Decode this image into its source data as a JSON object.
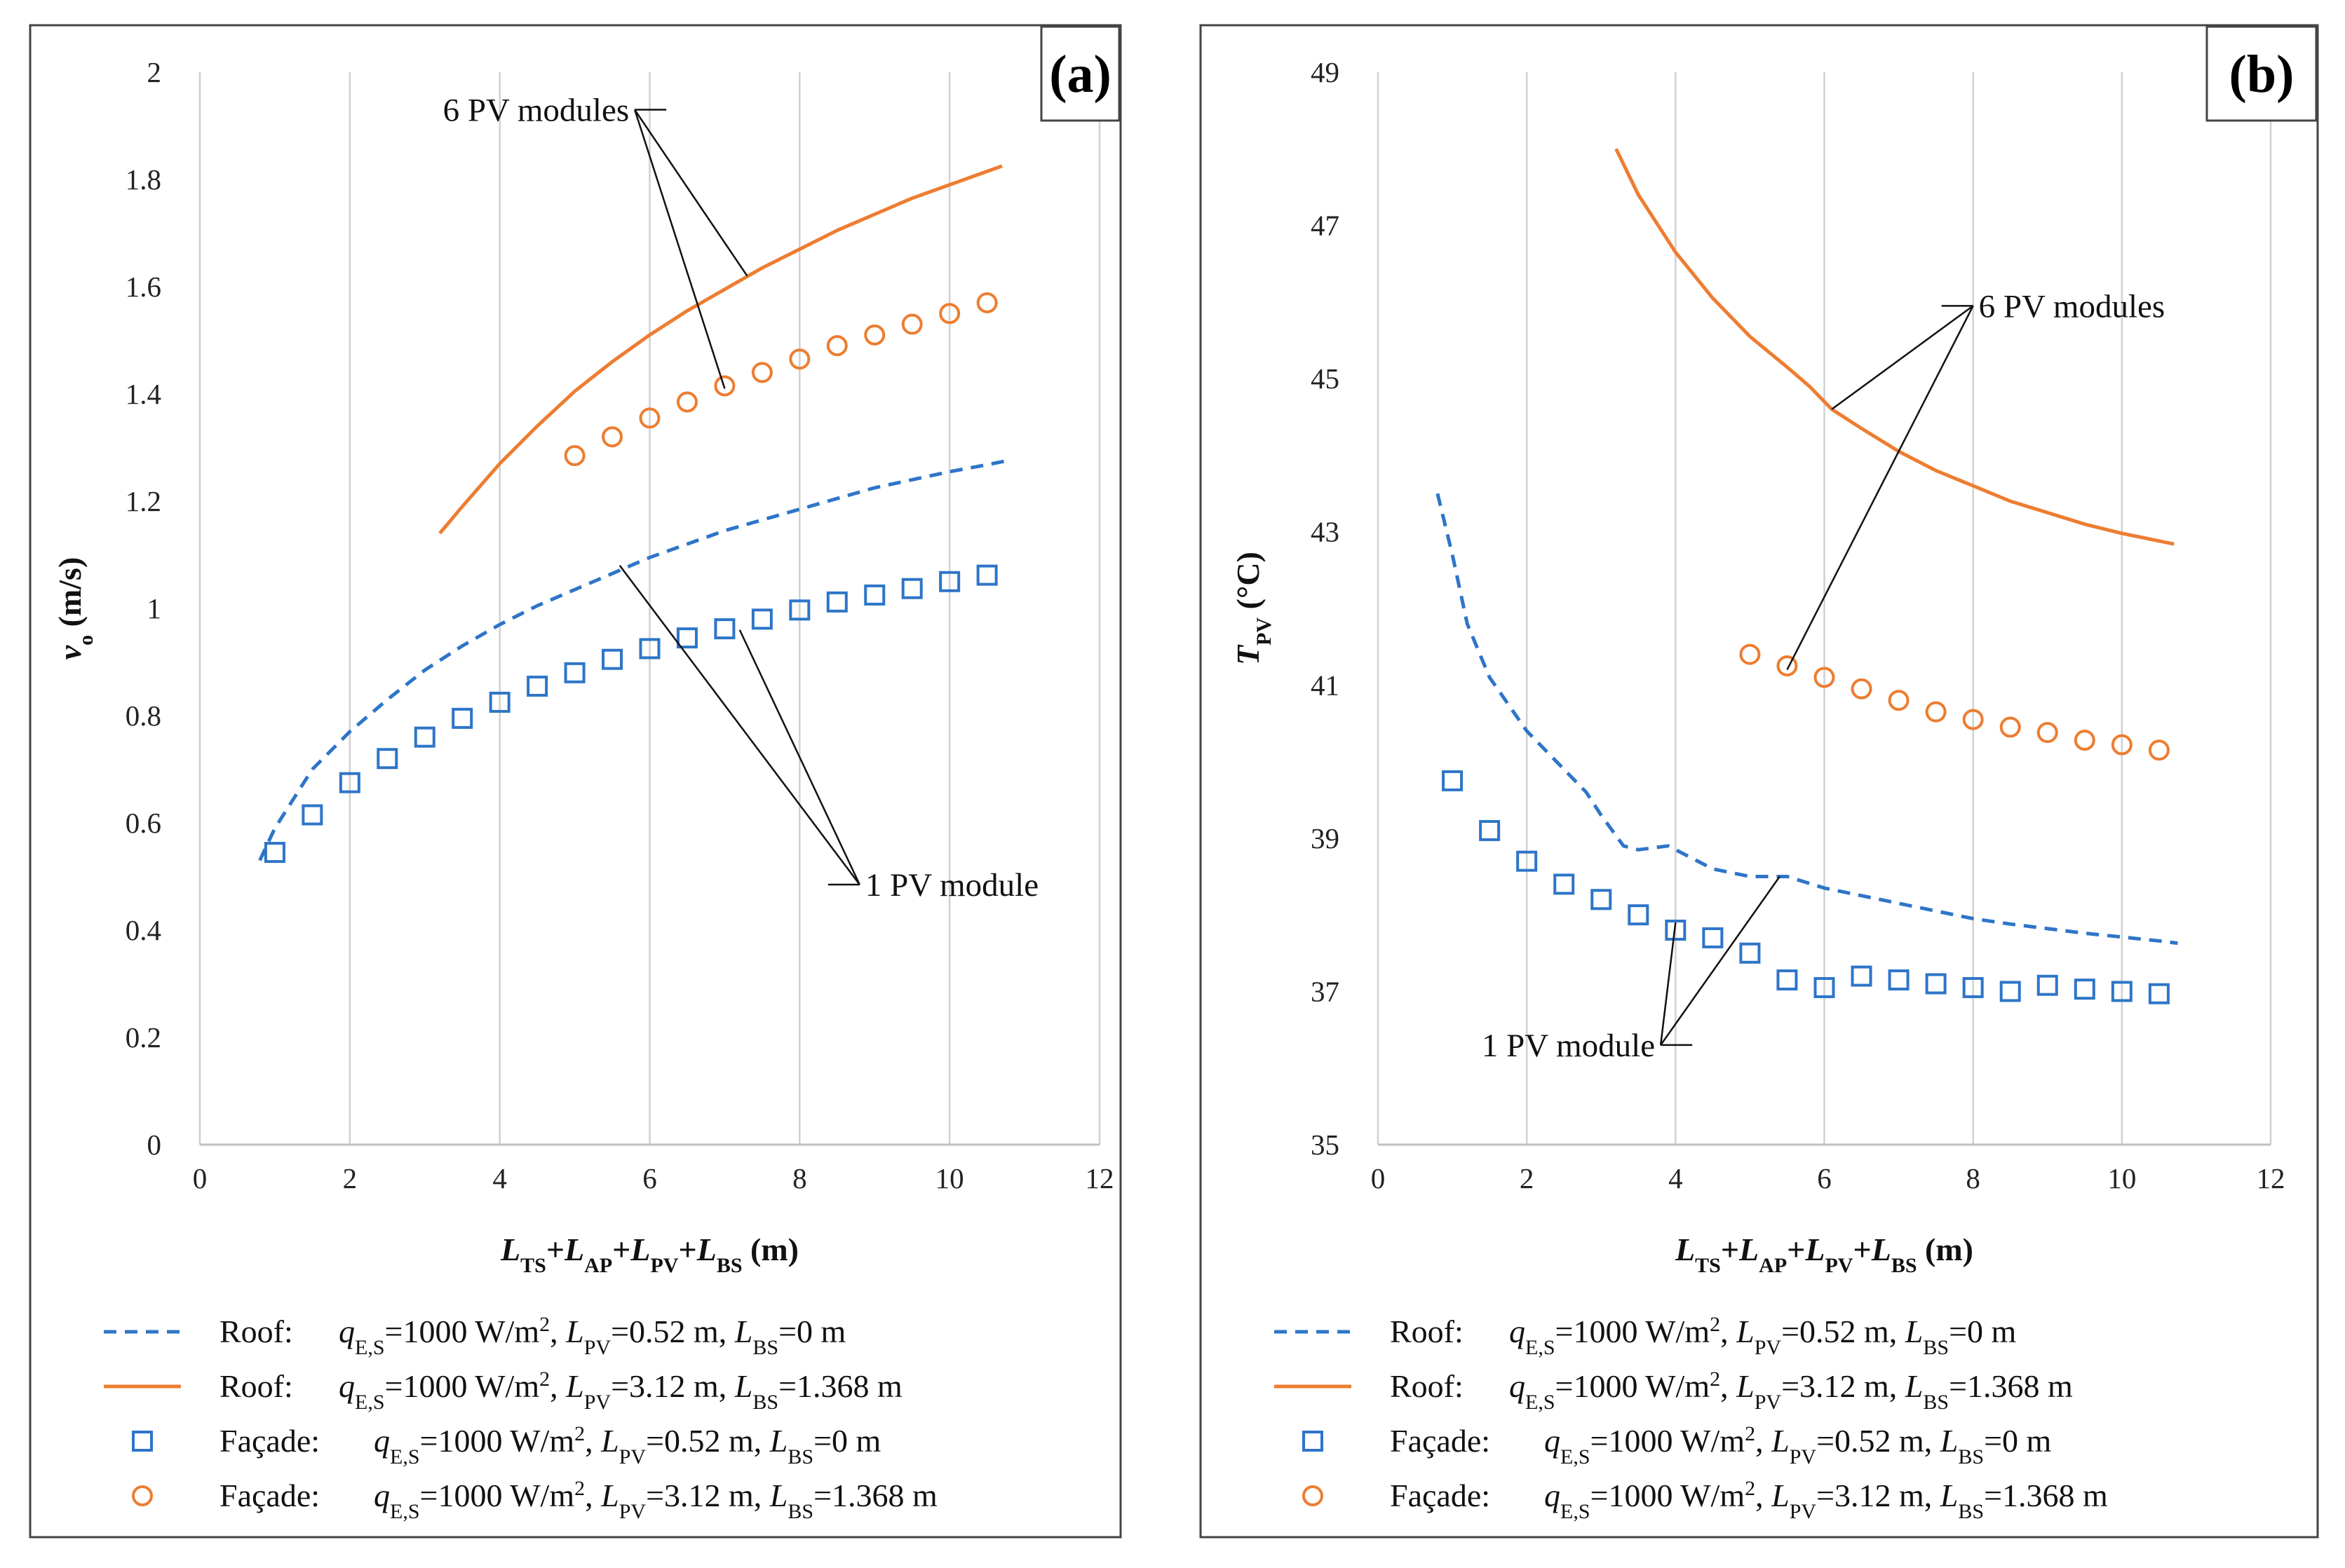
{
  "chart_data": [
    {
      "type": "line",
      "panel_label": "(a)",
      "xlabel_parts": [
        {
          "t": "L",
          "i": true
        },
        {
          "t": "TS",
          "sub": true
        },
        {
          "t": "+"
        },
        {
          "t": "L",
          "i": true
        },
        {
          "t": "AP",
          "sub": true
        },
        {
          "t": "+"
        },
        {
          "t": "L",
          "i": true
        },
        {
          "t": "PV",
          "sub": true
        },
        {
          "t": "+"
        },
        {
          "t": "L",
          "i": true
        },
        {
          "t": "BS",
          "sub": true
        },
        {
          "t": " (m)"
        }
      ],
      "ylabel_parts": [
        {
          "t": "v",
          "i": true
        },
        {
          "t": "o",
          "sub": true
        },
        {
          "t": " (m/s)"
        }
      ],
      "xlim": [
        0,
        12
      ],
      "ylim": [
        0,
        2
      ],
      "xticks": [
        0,
        2,
        4,
        6,
        8,
        10,
        12
      ],
      "yticks": [
        0,
        0.2,
        0.4,
        0.6,
        0.8,
        1,
        1.2,
        1.4,
        1.6,
        1.8,
        2
      ],
      "ytick_labels": [
        "0",
        "0.2",
        "0.4",
        "0.6",
        "0.8",
        "1",
        "1.2",
        "1.4",
        "1.6",
        "1.8",
        "2"
      ],
      "grid": "vertical",
      "series": [
        {
          "kind": "dashed-line",
          "color": "#2e75c8",
          "x": [
            0.8,
            1.0,
            1.5,
            2.0,
            2.5,
            3.0,
            3.5,
            4.0,
            4.5,
            5.0,
            5.5,
            6.0,
            6.5,
            7.0,
            7.5,
            8.0,
            8.5,
            9.0,
            9.5,
            10.0,
            10.5,
            10.75
          ],
          "y": [
            0.53,
            0.59,
            0.7,
            0.77,
            0.83,
            0.885,
            0.93,
            0.97,
            1.005,
            1.035,
            1.065,
            1.095,
            1.12,
            1.145,
            1.165,
            1.185,
            1.205,
            1.225,
            1.24,
            1.255,
            1.268,
            1.275
          ]
        },
        {
          "kind": "solid-line",
          "color": "#ed7d31",
          "x": [
            3.2,
            3.5,
            4.0,
            4.5,
            5.0,
            5.5,
            6.0,
            6.5,
            7.0,
            7.5,
            8.0,
            8.5,
            9.0,
            9.5,
            10.0,
            10.5,
            10.7
          ],
          "y": [
            1.14,
            1.19,
            1.27,
            1.34,
            1.405,
            1.46,
            1.51,
            1.555,
            1.595,
            1.635,
            1.67,
            1.705,
            1.735,
            1.765,
            1.79,
            1.815,
            1.825
          ]
        },
        {
          "kind": "square-markers",
          "color": "#2e75c8",
          "x": [
            1.0,
            1.5,
            2.0,
            2.5,
            3.0,
            3.5,
            4.0,
            4.5,
            5.0,
            5.5,
            6.0,
            6.5,
            7.0,
            7.5,
            8.0,
            8.5,
            9.0,
            9.5,
            10.0,
            10.5
          ],
          "y": [
            0.545,
            0.615,
            0.675,
            0.72,
            0.76,
            0.795,
            0.825,
            0.855,
            0.88,
            0.905,
            0.925,
            0.945,
            0.962,
            0.98,
            0.997,
            1.012,
            1.025,
            1.037,
            1.05,
            1.062
          ]
        },
        {
          "kind": "circle-markers",
          "color": "#ed7d31",
          "x": [
            5.0,
            5.5,
            6.0,
            6.5,
            7.0,
            7.5,
            8.0,
            8.5,
            9.0,
            9.5,
            10.0,
            10.5
          ],
          "y": [
            1.285,
            1.32,
            1.355,
            1.385,
            1.415,
            1.44,
            1.465,
            1.49,
            1.51,
            1.53,
            1.55,
            1.57
          ]
        }
      ],
      "annotations": [
        {
          "text": "6 PV modules",
          "anchor": [
            5.8,
            1.93
          ],
          "targets": [
            [
              7.3,
              1.62
            ],
            [
              7.0,
              1.41
            ]
          ]
        },
        {
          "text": "1 PV module",
          "anchor": [
            8.8,
            0.485
          ],
          "targets": [
            [
              5.6,
              1.08
            ],
            [
              7.2,
              0.96
            ]
          ]
        }
      ],
      "legend": [
        {
          "kind": "dashed-line",
          "color": "#2e75c8",
          "prefix": "Roof:",
          "lpv": "0.52 m",
          "lbs": "0 m"
        },
        {
          "kind": "solid-line",
          "color": "#ed7d31",
          "prefix": "Roof:",
          "lpv": "3.12 m",
          "lbs": "1.368 m"
        },
        {
          "kind": "square-markers",
          "color": "#2e75c8",
          "prefix": "Façade:",
          "lpv": "0.52 m",
          "lbs": "0 m"
        },
        {
          "kind": "circle-markers",
          "color": "#ed7d31",
          "prefix": "Façade:",
          "lpv": "3.12 m",
          "lbs": "1.368 m"
        }
      ]
    },
    {
      "type": "line",
      "panel_label": "(b)",
      "xlabel_parts": [
        {
          "t": "L",
          "i": true
        },
        {
          "t": "TS",
          "sub": true
        },
        {
          "t": "+"
        },
        {
          "t": "L",
          "i": true
        },
        {
          "t": "AP",
          "sub": true
        },
        {
          "t": "+"
        },
        {
          "t": "L",
          "i": true
        },
        {
          "t": "PV",
          "sub": true
        },
        {
          "t": "+"
        },
        {
          "t": "L",
          "i": true
        },
        {
          "t": "BS",
          "sub": true
        },
        {
          "t": " (m)"
        }
      ],
      "ylabel_parts": [
        {
          "t": "T",
          "i": true
        },
        {
          "t": "PV",
          "sub": true
        },
        {
          "t": " (°C)"
        }
      ],
      "xlim": [
        0,
        12
      ],
      "ylim": [
        35,
        49
      ],
      "xticks": [
        0,
        2,
        4,
        6,
        8,
        10,
        12
      ],
      "yticks": [
        35,
        37,
        39,
        41,
        43,
        45,
        47,
        49
      ],
      "ytick_labels": [
        "35",
        "37",
        "39",
        "41",
        "43",
        "45",
        "47",
        "49"
      ],
      "grid": "vertical",
      "series": [
        {
          "kind": "dashed-line",
          "color": "#2e75c8",
          "x": [
            0.8,
            1.0,
            1.2,
            1.5,
            2.0,
            2.5,
            2.8,
            3.0,
            3.3,
            3.5,
            3.9,
            4.2,
            4.5,
            5.0,
            5.5,
            6.0,
            6.5,
            7.0,
            7.5,
            8.0,
            8.5,
            9.0,
            9.5,
            10.0,
            10.5,
            10.75
          ],
          "y": [
            43.5,
            42.7,
            41.8,
            41.1,
            40.4,
            39.9,
            39.6,
            39.3,
            38.9,
            38.85,
            38.9,
            38.75,
            38.6,
            38.5,
            38.5,
            38.35,
            38.25,
            38.15,
            38.05,
            37.95,
            37.88,
            37.82,
            37.76,
            37.71,
            37.66,
            37.63
          ]
        },
        {
          "kind": "solid-line",
          "color": "#ed7d31",
          "x": [
            3.2,
            3.5,
            4.0,
            4.5,
            5.0,
            5.5,
            5.8,
            6.1,
            6.5,
            7.0,
            7.5,
            8.0,
            8.5,
            9.0,
            9.5,
            10.0,
            10.5,
            10.7
          ],
          "y": [
            48.0,
            47.4,
            46.65,
            46.05,
            45.55,
            45.15,
            44.9,
            44.6,
            44.35,
            44.05,
            43.8,
            43.6,
            43.4,
            43.25,
            43.1,
            42.98,
            42.88,
            42.84
          ]
        },
        {
          "kind": "square-markers",
          "color": "#2e75c8",
          "x": [
            1.0,
            1.5,
            2.0,
            2.5,
            3.0,
            3.5,
            4.0,
            4.5,
            5.0,
            5.5,
            6.0,
            6.5,
            7.0,
            7.5,
            8.0,
            8.5,
            9.0,
            9.5,
            10.0,
            10.5
          ],
          "y": [
            39.75,
            39.1,
            38.7,
            38.4,
            38.2,
            38.0,
            37.8,
            37.7,
            37.5,
            37.15,
            37.05,
            37.2,
            37.15,
            37.1,
            37.05,
            37.0,
            37.08,
            37.03,
            37.0,
            36.97
          ]
        },
        {
          "kind": "circle-markers",
          "color": "#ed7d31",
          "x": [
            5.0,
            5.5,
            6.0,
            6.5,
            7.0,
            7.5,
            8.0,
            8.5,
            9.0,
            9.5,
            10.0,
            10.5
          ],
          "y": [
            41.4,
            41.25,
            41.1,
            40.95,
            40.8,
            40.65,
            40.55,
            40.45,
            40.38,
            40.28,
            40.22,
            40.15
          ]
        }
      ],
      "annotations": [
        {
          "text": "6 PV modules",
          "anchor": [
            8.0,
            45.95
          ],
          "targets": [
            [
              6.1,
              44.6
            ],
            [
              5.5,
              41.2
            ]
          ]
        },
        {
          "text": "1 PV module",
          "anchor": [
            3.8,
            36.3
          ],
          "targets": [
            [
              4.0,
              37.9
            ],
            [
              5.4,
              38.5
            ]
          ]
        }
      ],
      "legend": [
        {
          "kind": "dashed-line",
          "color": "#2e75c8",
          "prefix": "Roof:",
          "lpv": "0.52 m",
          "lbs": "0 m"
        },
        {
          "kind": "solid-line",
          "color": "#ed7d31",
          "prefix": "Roof:",
          "lpv": "3.12 m",
          "lbs": "1.368 m"
        },
        {
          "kind": "square-markers",
          "color": "#2e75c8",
          "prefix": "Façade:",
          "lpv": "0.52 m",
          "lbs": "0 m"
        },
        {
          "kind": "circle-markers",
          "color": "#ed7d31",
          "prefix": "Façade:",
          "lpv": "3.12 m",
          "lbs": "1.368 m"
        }
      ]
    }
  ],
  "legend_common": {
    "q_symbol": "q",
    "q_sub": "E,S",
    "q_value": "=1000 W/m",
    "q_unit_sup": "2",
    "lpv_symbol": "L",
    "lpv_sub": "PV",
    "lbs_symbol": "L",
    "lbs_sub": "BS"
  }
}
